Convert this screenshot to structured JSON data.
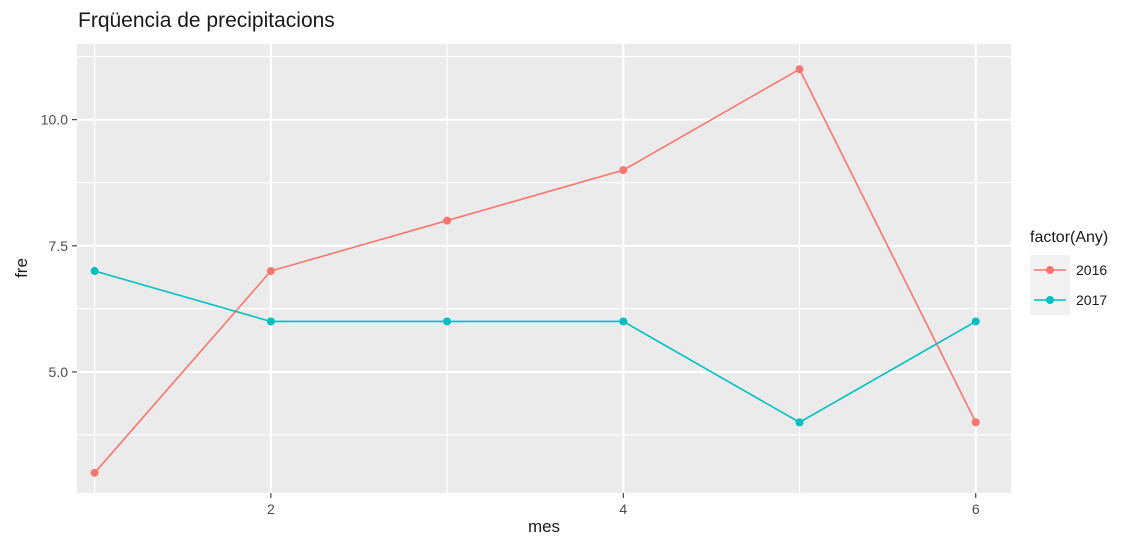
{
  "chart_data": {
    "type": "line",
    "title": "Frqüencia de precipitacions",
    "xlabel": "mes",
    "ylabel": "fre",
    "x": [
      1,
      2,
      3,
      4,
      5,
      6
    ],
    "xlim": [
      0.9,
      6.2
    ],
    "ylim": [
      2.6,
      11.5
    ],
    "x_ticks": [
      2,
      4,
      6
    ],
    "x_tick_labels": [
      "2",
      "4",
      "6"
    ],
    "y_ticks": [
      5.0,
      7.5,
      10.0
    ],
    "y_tick_labels": [
      "5.0",
      "7.5",
      "10.0"
    ],
    "grid": true,
    "legend": {
      "title": "factor(Any)",
      "position": "right"
    },
    "series": [
      {
        "name": "2016",
        "color": "#F8766D",
        "values": [
          3,
          7,
          8,
          9,
          11,
          4
        ]
      },
      {
        "name": "2017",
        "color": "#00BFC4",
        "values": [
          7,
          6,
          6,
          6,
          4,
          6
        ]
      }
    ],
    "panel_color": "#EBEBEB",
    "grid_color": "#FFFFFF"
  }
}
